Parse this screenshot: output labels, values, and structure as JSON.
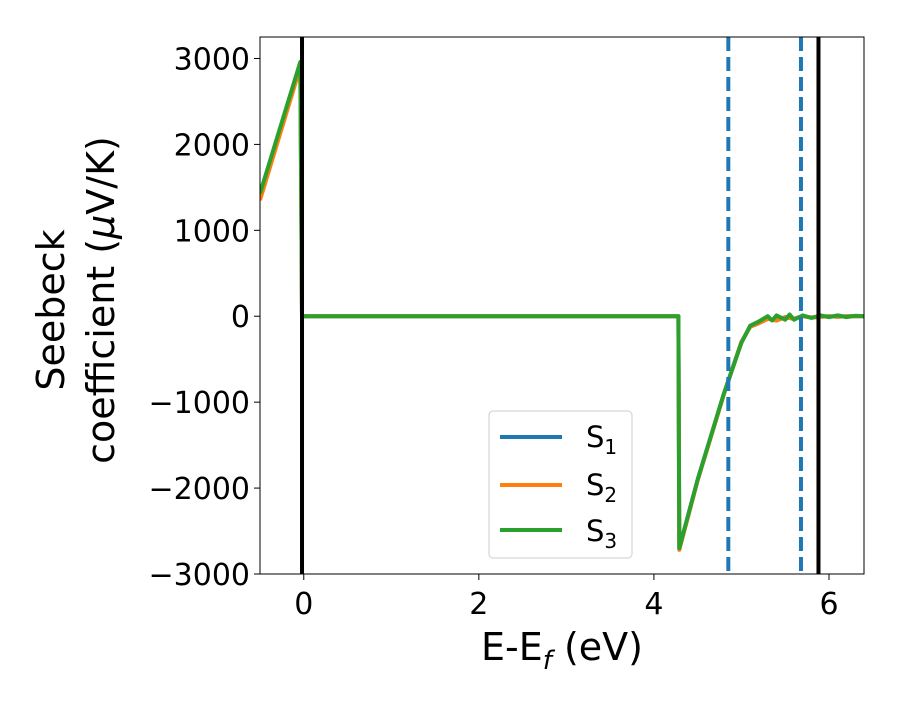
{
  "chart_data": {
    "type": "line",
    "xlabel": "E-E",
    "xlabel_sub": "f",
    "xlabel_unit": " (eV)",
    "ylabel_line1": "Seebeck",
    "ylabel_line2_pre": "coefficient  (",
    "ylabel_line2_mu": "μ",
    "ylabel_line2_post": "V/K)",
    "xlim": [
      -0.5,
      6.4
    ],
    "ylim": [
      -3000,
      3250
    ],
    "xticks": [
      0,
      2,
      4,
      6
    ],
    "yticks": [
      -3000,
      -2000,
      -1000,
      0,
      1000,
      2000,
      3000
    ],
    "ytick_labels": [
      "−3000",
      "−2000",
      "−1000",
      "0",
      "1000",
      "2000",
      "3000"
    ],
    "grid": false,
    "legend_placement": "lower-center",
    "series": [
      {
        "name": "S",
        "name_sub": "1",
        "color": "#1f77b4",
        "x": [
          -0.5,
          -0.04,
          -0.02,
          4.28,
          4.29,
          4.5,
          4.8,
          5.0,
          5.1,
          5.2,
          5.3,
          5.4,
          5.5,
          5.6,
          5.7,
          5.8,
          5.9,
          6.0,
          6.1,
          6.2,
          6.4
        ],
        "y": [
          1400,
          2950,
          0,
          0,
          -2700,
          -1900,
          -900,
          -300,
          -120,
          -80,
          -30,
          -50,
          -10,
          -30,
          0,
          -15,
          -5,
          0,
          -5,
          0,
          0
        ]
      },
      {
        "name": "S",
        "name_sub": "2",
        "color": "#ff7f0e",
        "x": [
          -0.5,
          -0.04,
          -0.02,
          4.28,
          4.29,
          4.5,
          4.8,
          5.0,
          5.1,
          5.2,
          5.3,
          5.4,
          5.5,
          5.6,
          5.7,
          5.8,
          5.9,
          6.0,
          6.1,
          6.2,
          6.4
        ],
        "y": [
          1350,
          2900,
          0,
          0,
          -2720,
          -1910,
          -910,
          -300,
          -120,
          -80,
          -30,
          -50,
          -10,
          -30,
          0,
          -15,
          -5,
          0,
          -5,
          0,
          0
        ]
      },
      {
        "name": "S",
        "name_sub": "3",
        "color": "#2ca02c",
        "x": [
          -0.5,
          -0.04,
          -0.02,
          4.28,
          4.29,
          4.5,
          4.8,
          5.0,
          5.1,
          5.2,
          5.3,
          5.35,
          5.4,
          5.5,
          5.55,
          5.6,
          5.7,
          5.8,
          5.9,
          6.0,
          6.1,
          6.2,
          6.3,
          6.4
        ],
        "y": [
          1430,
          2960,
          0,
          0,
          -2700,
          -1900,
          -900,
          -310,
          -110,
          -60,
          0,
          -50,
          10,
          -40,
          20,
          -40,
          10,
          -20,
          10,
          -10,
          10,
          -10,
          5,
          0
        ]
      }
    ],
    "vlines": [
      {
        "x": -0.02,
        "style": "solid",
        "color": "#000000"
      },
      {
        "x": 5.88,
        "style": "solid",
        "color": "#000000"
      },
      {
        "x": 4.85,
        "style": "dashed",
        "color": "#1f77b4"
      },
      {
        "x": 5.68,
        "style": "dashed",
        "color": "#1f77b4"
      }
    ]
  }
}
